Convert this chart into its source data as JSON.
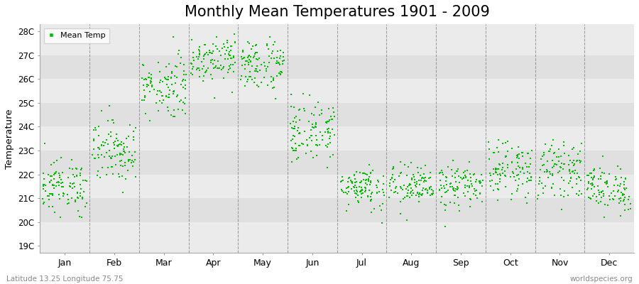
{
  "title": "Monthly Mean Temperatures 1901 - 2009",
  "ylabel": "Temperature",
  "bottom_left_text": "Latitude 13.25 Longitude 75.75",
  "bottom_right_text": "worldspecies.org",
  "legend_label": "Mean Temp",
  "dot_color": "#00BB00",
  "dot_size": 2.5,
  "background_color": "#FFFFFF",
  "plot_bg_color": "#EBEBEB",
  "band_color_light": "#EBEBEB",
  "band_color_dark": "#E0E0E0",
  "ytick_labels": [
    "19C",
    "20C",
    "21C",
    "22C",
    "23C",
    "24C",
    "25C",
    "26C",
    "27C",
    "28C"
  ],
  "ytick_values": [
    19,
    20,
    21,
    22,
    23,
    24,
    25,
    26,
    27,
    28
  ],
  "ylim": [
    18.7,
    28.3
  ],
  "months": [
    "Jan",
    "Feb",
    "Mar",
    "Apr",
    "May",
    "Jun",
    "Jul",
    "Aug",
    "Sep",
    "Oct",
    "Nov",
    "Dec"
  ],
  "title_fontsize": 15,
  "start_year": 1901,
  "end_year": 2009,
  "monthly_means": [
    21.5,
    23.0,
    25.7,
    26.9,
    26.6,
    23.8,
    21.5,
    21.5,
    21.5,
    22.2,
    22.2,
    21.4
  ],
  "monthly_stds": [
    0.55,
    0.65,
    0.65,
    0.48,
    0.55,
    0.65,
    0.45,
    0.45,
    0.45,
    0.55,
    0.55,
    0.48
  ]
}
